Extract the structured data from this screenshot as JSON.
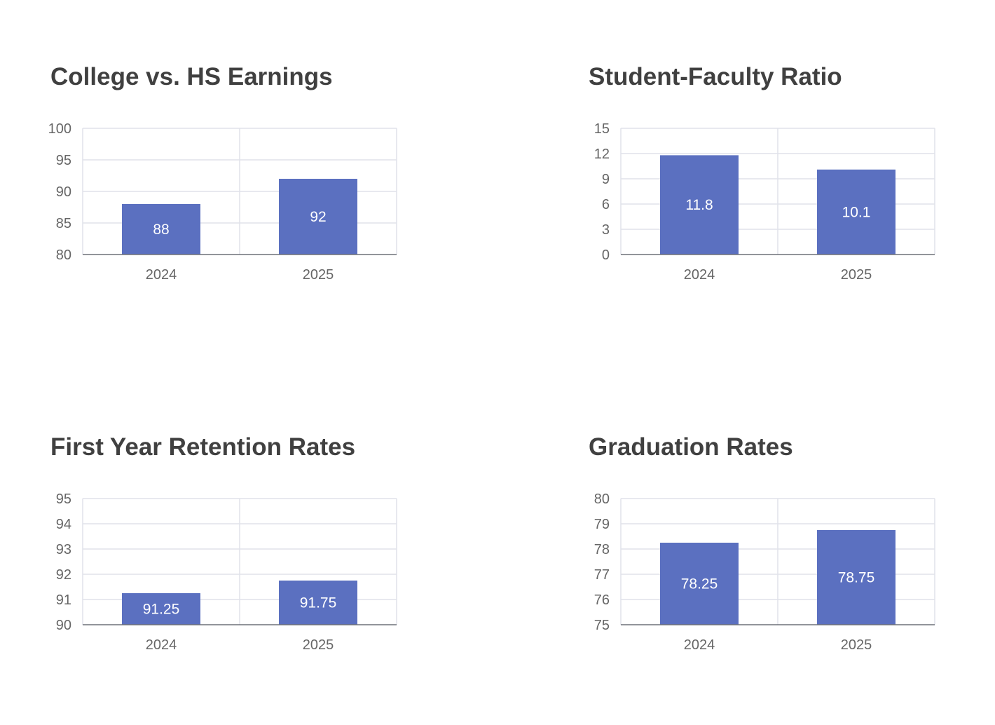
{
  "bar_color": "#5b70c0",
  "grid_color": "#e0e2ea",
  "axis_color": "#6e7079",
  "chart_data": [
    {
      "type": "bar",
      "title": "College vs. HS Earnings",
      "categories": [
        "2024",
        "2025"
      ],
      "values": [
        88,
        92
      ],
      "data_labels": [
        "88",
        "92"
      ],
      "ylim": [
        80,
        100
      ],
      "yticks": [
        80,
        85,
        90,
        95,
        100
      ],
      "xlabel": "",
      "ylabel": "",
      "grid": true,
      "legend": "none"
    },
    {
      "type": "bar",
      "title": "Student-Faculty Ratio",
      "categories": [
        "2024",
        "2025"
      ],
      "values": [
        11.8,
        10.1
      ],
      "data_labels": [
        "11.8",
        "10.1"
      ],
      "ylim": [
        0,
        15
      ],
      "yticks": [
        0,
        3,
        6,
        9,
        12,
        15
      ],
      "xlabel": "",
      "ylabel": "",
      "grid": true,
      "legend": "none"
    },
    {
      "type": "bar",
      "title": "First Year Retention Rates",
      "categories": [
        "2024",
        "2025"
      ],
      "values": [
        91.25,
        91.75
      ],
      "data_labels": [
        "91.25",
        "91.75"
      ],
      "ylim": [
        90,
        95
      ],
      "yticks": [
        90,
        91,
        92,
        93,
        94,
        95
      ],
      "xlabel": "",
      "ylabel": "",
      "grid": true,
      "legend": "none"
    },
    {
      "type": "bar",
      "title": "Graduation Rates",
      "categories": [
        "2024",
        "2025"
      ],
      "values": [
        78.25,
        78.75
      ],
      "data_labels": [
        "78.25",
        "78.75"
      ],
      "ylim": [
        75,
        80
      ],
      "yticks": [
        75,
        76,
        77,
        78,
        79,
        80
      ],
      "xlabel": "",
      "ylabel": "",
      "grid": true,
      "legend": "none"
    }
  ]
}
